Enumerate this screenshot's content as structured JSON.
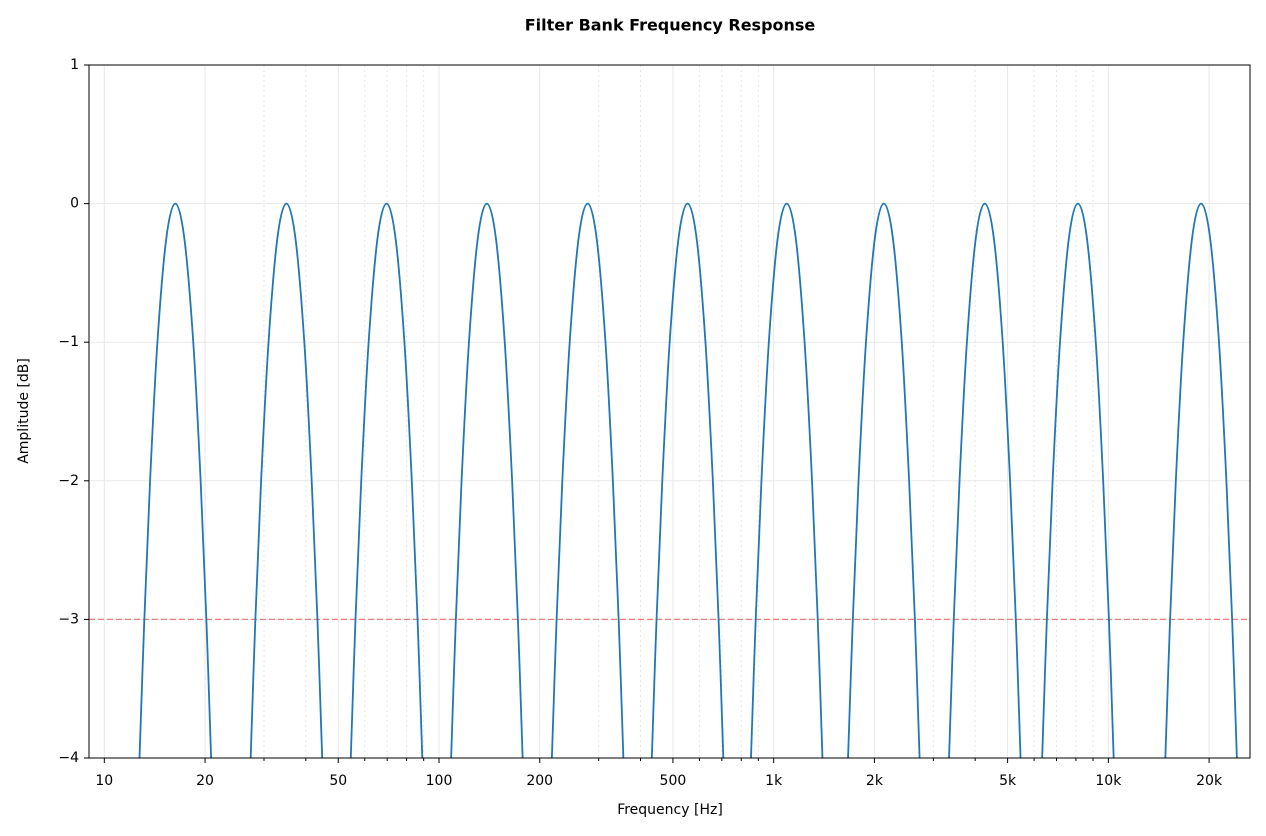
{
  "chart_data": {
    "type": "line",
    "title": "Filter Bank Frequency Response",
    "xlabel": "Frequency [Hz]",
    "ylabel": "Amplitude [dB]",
    "xscale": "log",
    "xlim": [
      9,
      26500
    ],
    "ylim": [
      -4,
      1
    ],
    "xticks": [
      10,
      20,
      50,
      100,
      200,
      500,
      {
        "value": 1000,
        "label": "1k"
      },
      {
        "value": 2000,
        "label": "2k"
      },
      {
        "value": 5000,
        "label": "5k"
      },
      {
        "value": 10000,
        "label": "10k"
      },
      {
        "value": 20000,
        "label": "20k"
      }
    ],
    "xminorticks": [
      30,
      40,
      60,
      70,
      80,
      90,
      300,
      400,
      600,
      700,
      800,
      900,
      3000,
      4000,
      6000,
      7000,
      8000,
      9000
    ],
    "yticks": [
      1,
      0,
      {
        "value": -1,
        "label": "−1"
      },
      {
        "value": -2,
        "label": "−2"
      },
      {
        "value": -3,
        "label": "−3"
      },
      {
        "value": -4,
        "label": "−4"
      }
    ],
    "grid": true,
    "hline": {
      "value": -3,
      "color": "#e88080"
    },
    "series": [
      {
        "color": "#1f77b4",
        "x": [
          12.74,
          13.17,
          13.7,
          14.41,
          15.32,
          16.3,
          17.34,
          18.44,
          19.4,
          20.18,
          20.85
        ],
        "values": [
          -4,
          -3,
          -2,
          -1,
          -0.25,
          0,
          -0.25,
          -1,
          -2,
          -3,
          -4
        ]
      },
      {
        "color": "#1f77b4",
        "x": [
          27.37,
          28.27,
          29.41,
          30.95,
          32.89,
          35,
          37.24,
          39.59,
          41.65,
          43.33,
          44.77
        ],
        "values": [
          -4,
          -3,
          -2,
          -1,
          -0.25,
          0,
          -0.25,
          -1,
          -2,
          -3,
          -4
        ]
      },
      {
        "color": "#1f77b4",
        "x": [
          54.5,
          56.3,
          58.57,
          61.63,
          65.51,
          69.7,
          74.16,
          78.83,
          82.94,
          86.29,
          89.15
        ],
        "values": [
          -4,
          -3,
          -2,
          -1,
          -0.25,
          0,
          -0.25,
          -1,
          -2,
          -3,
          -4
        ]
      },
      {
        "color": "#1f77b4",
        "x": [
          108.7,
          112.3,
          116.8,
          122.9,
          130.6,
          139,
          147.9,
          157.2,
          165.4,
          172.1,
          177.8
        ],
        "values": [
          -4,
          -3,
          -2,
          -1,
          -0.25,
          0,
          -0.25,
          -1,
          -2,
          -3,
          -4
        ]
      },
      {
        "color": "#1f77b4",
        "x": [
          217.4,
          224.6,
          233.6,
          245.8,
          261.3,
          278,
          295.8,
          314.4,
          330.8,
          344.2,
          355.6
        ],
        "values": [
          -4,
          -3,
          -2,
          -1,
          -0.25,
          0,
          -0.25,
          -1,
          -2,
          -3,
          -4
        ]
      },
      {
        "color": "#1f77b4",
        "x": [
          432.4,
          446.7,
          464.7,
          488.9,
          519.7,
          553,
          588.4,
          625.4,
          658.1,
          684.6,
          707.3
        ],
        "values": [
          -4,
          -3,
          -2,
          -1,
          -0.25,
          0,
          -0.25,
          -1,
          -2,
          -3,
          -4
        ]
      },
      {
        "color": "#1f77b4",
        "x": [
          855.4,
          883.7,
          919.3,
          967.3,
          1028,
          1094,
          1164,
          1237,
          1302,
          1354,
          1399
        ],
        "values": [
          -4,
          -3,
          -2,
          -1,
          -0.25,
          0,
          -0.25,
          -1,
          -2,
          -3,
          -4
        ]
      },
      {
        "color": "#1f77b4",
        "x": [
          1668,
          1724,
          1793,
          1887,
          2006,
          2134,
          2271,
          2414,
          2539,
          2642,
          2729
        ],
        "values": [
          -4,
          -3,
          -2,
          -1,
          -0.25,
          0,
          -0.25,
          -1,
          -2,
          -3,
          -4
        ]
      },
      {
        "color": "#1f77b4",
        "x": [
          3342,
          3452,
          3592,
          3779,
          4017,
          4274,
          4548,
          4834,
          5086,
          5291,
          5466
        ],
        "values": [
          -4,
          -3,
          -2,
          -1,
          -0.25,
          0,
          -0.25,
          -1,
          -2,
          -3,
          -4
        ]
      },
      {
        "color": "#1f77b4",
        "x": [
          6341,
          6551,
          6815,
          7171,
          7622,
          8110,
          8629,
          9172,
          9651,
          10040,
          10373
        ],
        "values": [
          -4,
          -3,
          -2,
          -1,
          -0.25,
          0,
          -0.25,
          -1,
          -2,
          -3,
          -4
        ]
      },
      {
        "color": "#1f77b4",
        "x": [
          14801,
          15291,
          15908,
          16738,
          17791,
          18930,
          20142,
          21410,
          22527,
          23435,
          24211
        ],
        "values": [
          -4,
          -3,
          -2,
          -1,
          -0.25,
          0,
          -0.25,
          -1,
          -2,
          -3,
          -4
        ]
      }
    ]
  }
}
